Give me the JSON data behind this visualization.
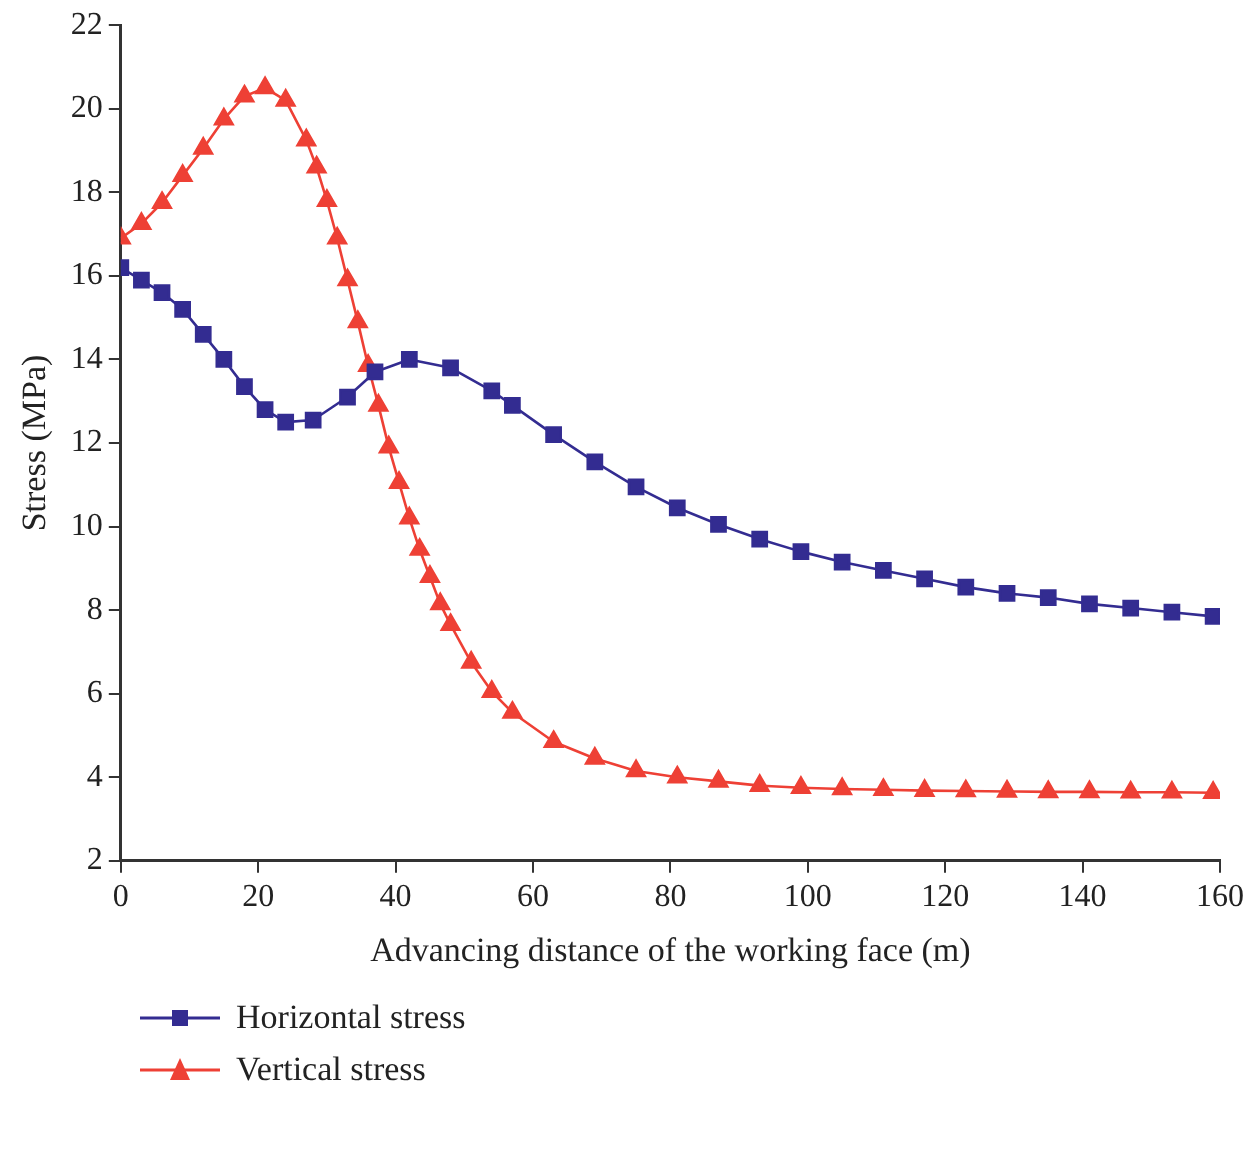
{
  "chart_data": {
    "type": "line",
    "xlabel": "Advancing distance of the working face (m)",
    "ylabel": "Stress (MPa)",
    "xlim": [
      0,
      160
    ],
    "xticks": [
      0,
      20,
      40,
      60,
      80,
      100,
      120,
      140,
      160
    ],
    "ylim": [
      2,
      22
    ],
    "yticks": [
      2,
      4,
      6,
      8,
      10,
      12,
      14,
      16,
      18,
      20,
      22
    ],
    "grid": false,
    "legend": "bottom left",
    "series": [
      {
        "name": "Horizontal stress",
        "color": "#332c91",
        "marker": "square",
        "x": [
          0,
          3,
          6,
          9,
          12,
          15,
          18,
          21,
          24,
          28,
          33,
          37,
          42,
          48,
          54,
          57,
          63,
          69,
          75,
          81,
          87,
          93,
          99,
          105,
          111,
          117,
          123,
          129,
          135,
          141,
          147,
          153,
          159
        ],
        "values": [
          16.2,
          15.9,
          15.6,
          15.2,
          14.6,
          14.0,
          13.35,
          12.8,
          12.5,
          12.55,
          13.1,
          13.7,
          14.0,
          13.8,
          13.25,
          12.9,
          12.2,
          11.55,
          10.95,
          10.45,
          10.05,
          9.7,
          9.4,
          9.15,
          8.95,
          8.75,
          8.55,
          8.4,
          8.3,
          8.15,
          8.05,
          7.95,
          7.85
        ]
      },
      {
        "name": "Vertical stress",
        "color": "#ee4035",
        "marker": "triangle",
        "x": [
          0,
          3,
          6,
          9,
          12,
          15,
          18,
          21,
          24,
          27,
          28.5,
          30,
          31.5,
          33,
          34.5,
          36,
          37.5,
          39,
          40.5,
          42,
          43.5,
          45,
          46.5,
          48,
          51,
          54,
          57,
          63,
          69,
          75,
          81,
          87,
          93,
          99,
          105,
          111,
          117,
          123,
          129,
          135,
          141,
          147,
          153,
          159
        ],
        "values": [
          16.9,
          17.25,
          17.75,
          18.4,
          19.05,
          19.75,
          20.3,
          20.5,
          20.2,
          19.25,
          18.6,
          17.8,
          16.9,
          15.9,
          14.9,
          13.85,
          12.9,
          11.9,
          11.05,
          10.2,
          9.45,
          8.8,
          8.15,
          7.65,
          6.75,
          6.05,
          5.55,
          4.85,
          4.45,
          4.15,
          4.0,
          3.9,
          3.8,
          3.75,
          3.72,
          3.7,
          3.68,
          3.67,
          3.66,
          3.65,
          3.65,
          3.64,
          3.64,
          3.63
        ]
      }
    ]
  }
}
